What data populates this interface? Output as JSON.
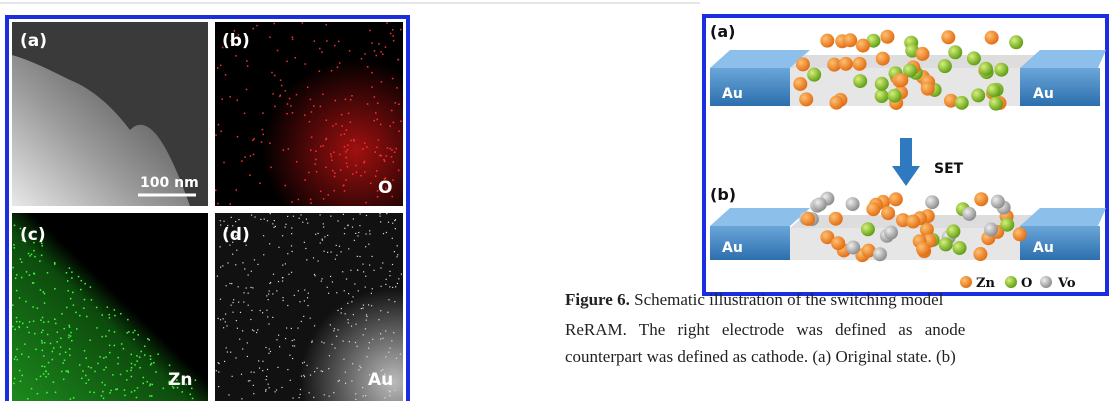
{
  "left_figure": {
    "panels": [
      {
        "label": "(a)",
        "scale_bar": "100 nm"
      },
      {
        "label": "(b)",
        "element": "O"
      },
      {
        "label": "(c)",
        "element": "Zn"
      },
      {
        "label": "(d)",
        "element": "Au"
      }
    ]
  },
  "right_figure": {
    "panel_a": {
      "label": "(a)",
      "electrodes": [
        "Au",
        "Au"
      ]
    },
    "arrow_label": "SET",
    "panel_b": {
      "label": "(b)",
      "electrodes": [
        "Au",
        "Au"
      ]
    },
    "legend": [
      "Zn",
      "O",
      "Vo"
    ]
  },
  "caption": {
    "label": "Figure 6.",
    "lines": [
      "Schematic illustration of the switching model",
      "ReRAM. The right electrode was defined as anode",
      "counterpart was defined as cathode. (a) Original state. (b)"
    ]
  }
}
